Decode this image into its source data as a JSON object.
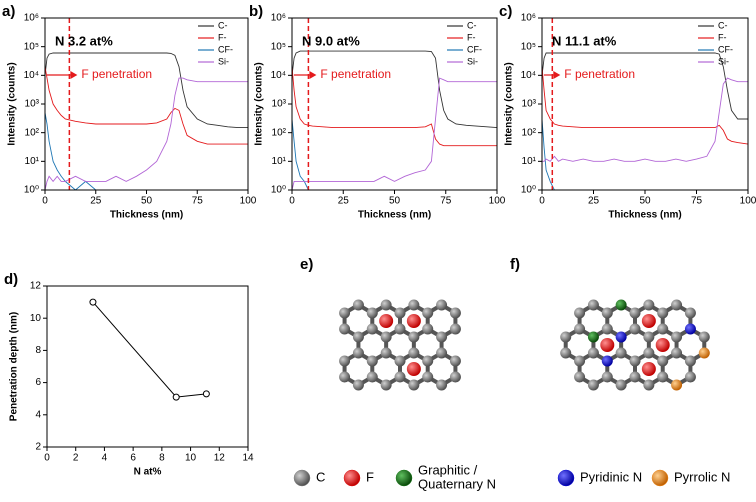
{
  "chart_data": [
    {
      "type": "line",
      "panel": "a)",
      "title": "N 3.2 at%",
      "annotation": "F penetration",
      "vline": 12,
      "vline_color": "#e41a1c",
      "x_label": "Thickness (nm)",
      "y_label": "Intensity (counts)",
      "log_y": true,
      "legend": "upper right",
      "xlim": [
        0,
        100
      ],
      "xticks": [
        0,
        25,
        50,
        75,
        100
      ],
      "ylim": [
        1,
        1000000
      ],
      "yticks": [
        {
          "value": 1,
          "label": "10⁰"
        },
        {
          "value": 10,
          "label": "10¹"
        },
        {
          "value": 100,
          "label": "10²"
        },
        {
          "value": 1000,
          "label": "10³"
        },
        {
          "value": 10000,
          "label": "10⁴"
        },
        {
          "value": 100000,
          "label": "10⁵"
        },
        {
          "value": 1000000,
          "label": "10⁶"
        }
      ],
      "x": [
        0,
        1,
        2,
        4,
        6,
        8,
        10,
        15,
        20,
        25,
        30,
        35,
        40,
        45,
        50,
        55,
        60,
        62,
        64,
        66,
        68,
        70,
        75,
        80,
        85,
        90,
        95,
        100
      ],
      "series": [
        {
          "name": "C-",
          "color": "#333333",
          "values": [
            10000,
            40000,
            55000,
            60000,
            60000,
            60000,
            60000,
            60000,
            60000,
            60000,
            60000,
            60000,
            60000,
            60000,
            60000,
            60000,
            60000,
            58000,
            50000,
            20000,
            3000,
            800,
            300,
            200,
            180,
            160,
            150,
            150
          ]
        },
        {
          "name": "F-",
          "color": "#e41a1c",
          "values": [
            20000,
            8000,
            3000,
            1000,
            600,
            400,
            300,
            250,
            220,
            200,
            200,
            200,
            200,
            200,
            200,
            220,
            300,
            500,
            700,
            600,
            200,
            80,
            50,
            40,
            40,
            40,
            40,
            40
          ]
        },
        {
          "name": "CF-",
          "color": "#1f77b4",
          "values": [
            500,
            200,
            50,
            10,
            5,
            3,
            2,
            1,
            2,
            1,
            1,
            1,
            1,
            1,
            1,
            1,
            1,
            1,
            1,
            1,
            1,
            1,
            1,
            1,
            1,
            1,
            1,
            1
          ]
        },
        {
          "name": "Si-",
          "color": "#b266d6",
          "values": [
            1,
            2,
            3,
            2,
            3,
            2,
            2,
            3,
            2,
            2,
            2,
            3,
            2,
            3,
            5,
            10,
            50,
            200,
            2000,
            8000,
            8000,
            7000,
            6000,
            6000,
            6000,
            6000,
            6000,
            6000
          ]
        }
      ]
    },
    {
      "type": "line",
      "panel": "b)",
      "title": "N 9.0 at%",
      "annotation": "F penetration",
      "vline": 8,
      "vline_color": "#e41a1c",
      "x_label": "Thickness (nm)",
      "y_label": "Intensity (counts)",
      "log_y": true,
      "legend": "upper right",
      "xlim": [
        0,
        100
      ],
      "xticks": [
        0,
        25,
        50,
        75,
        100
      ],
      "ylim": [
        1,
        1000000
      ],
      "yticks": [
        {
          "value": 1,
          "label": "10⁰"
        },
        {
          "value": 10,
          "label": "10¹"
        },
        {
          "value": 100,
          "label": "10²"
        },
        {
          "value": 1000,
          "label": "10³"
        },
        {
          "value": 10000,
          "label": "10⁴"
        },
        {
          "value": 100000,
          "label": "10⁵"
        },
        {
          "value": 1000000,
          "label": "10⁶"
        }
      ],
      "x": [
        0,
        1,
        2,
        4,
        6,
        8,
        10,
        15,
        20,
        25,
        30,
        35,
        40,
        45,
        50,
        55,
        60,
        65,
        68,
        70,
        72,
        74,
        76,
        80,
        85,
        90,
        95,
        100
      ],
      "series": [
        {
          "name": "C-",
          "color": "#333333",
          "values": [
            10000,
            40000,
            60000,
            70000,
            70000,
            70000,
            70000,
            70000,
            70000,
            70000,
            70000,
            70000,
            70000,
            70000,
            70000,
            70000,
            70000,
            70000,
            68000,
            40000,
            3000,
            600,
            300,
            200,
            180,
            170,
            160,
            150
          ]
        },
        {
          "name": "F-",
          "color": "#e41a1c",
          "values": [
            20000,
            3000,
            800,
            300,
            200,
            180,
            170,
            160,
            150,
            150,
            150,
            150,
            150,
            150,
            150,
            150,
            150,
            160,
            200,
            60,
            40,
            35,
            35,
            35,
            35,
            35,
            35,
            35
          ]
        },
        {
          "name": "CF-",
          "color": "#1f77b4",
          "values": [
            300,
            50,
            10,
            3,
            2,
            1,
            1,
            1,
            1,
            1,
            1,
            1,
            1,
            1,
            1,
            1,
            1,
            1,
            1,
            1,
            1,
            1,
            1,
            1,
            1,
            1,
            1,
            1
          ]
        },
        {
          "name": "Si-",
          "color": "#b266d6",
          "values": [
            1,
            2,
            2,
            2,
            2,
            2,
            2,
            2,
            2,
            2,
            2,
            2,
            2,
            3,
            2,
            3,
            4,
            5,
            10,
            300,
            8000,
            7000,
            6000,
            6000,
            6000,
            6000,
            6000,
            6000
          ]
        }
      ]
    },
    {
      "type": "line",
      "panel": "c)",
      "title": "N 11.1 at%",
      "annotation": "F penetration",
      "vline": 5,
      "vline_color": "#e41a1c",
      "x_label": "Thickness (nm)",
      "y_label": "Intensity (counts)",
      "log_y": true,
      "legend": "upper right",
      "xlim": [
        0,
        100
      ],
      "xticks": [
        0,
        25,
        50,
        75,
        100
      ],
      "ylim": [
        1,
        1000000
      ],
      "yticks": [
        {
          "value": 1,
          "label": "10⁰"
        },
        {
          "value": 10,
          "label": "10¹"
        },
        {
          "value": 100,
          "label": "10²"
        },
        {
          "value": 1000,
          "label": "10³"
        },
        {
          "value": 10000,
          "label": "10⁴"
        },
        {
          "value": 100000,
          "label": "10⁵"
        },
        {
          "value": 1000000,
          "label": "10⁶"
        }
      ],
      "x": [
        0,
        1,
        2,
        4,
        6,
        8,
        10,
        15,
        20,
        25,
        30,
        35,
        40,
        45,
        50,
        55,
        60,
        65,
        70,
        75,
        80,
        84,
        86,
        88,
        90,
        92,
        95,
        100
      ],
      "series": [
        {
          "name": "C-",
          "color": "#333333",
          "values": [
            10000,
            40000,
            60000,
            60000,
            60000,
            60000,
            60000,
            60000,
            60000,
            60000,
            60000,
            60000,
            60000,
            60000,
            60000,
            60000,
            60000,
            60000,
            60000,
            60000,
            60000,
            60000,
            55000,
            20000,
            3000,
            600,
            300,
            300
          ]
        },
        {
          "name": "F-",
          "color": "#e41a1c",
          "values": [
            20000,
            3000,
            600,
            300,
            200,
            180,
            170,
            160,
            150,
            150,
            150,
            150,
            150,
            150,
            150,
            150,
            150,
            150,
            150,
            150,
            150,
            150,
            180,
            120,
            60,
            50,
            45,
            40
          ]
        },
        {
          "name": "CF-",
          "color": "#1f77b4",
          "values": [
            300,
            30,
            5,
            2,
            1,
            1,
            1,
            1,
            1,
            1,
            1,
            1,
            1,
            1,
            1,
            1,
            1,
            1,
            1,
            1,
            1,
            1,
            1,
            1,
            1,
            1,
            1,
            1
          ]
        },
        {
          "name": "Si-",
          "color": "#b266d6",
          "values": [
            10,
            10,
            12,
            10,
            15,
            10,
            12,
            10,
            12,
            10,
            10,
            12,
            10,
            10,
            12,
            10,
            10,
            12,
            10,
            12,
            15,
            50,
            500,
            5000,
            8000,
            7000,
            6000,
            6000
          ]
        }
      ]
    },
    {
      "type": "scatter_line",
      "panel": "d)",
      "x_label": "N at%",
      "y_label": "Penetration depth (nm)",
      "xlim": [
        0,
        14
      ],
      "xticks": [
        0,
        2,
        4,
        6,
        8,
        10,
        12,
        14
      ],
      "ylim": [
        2,
        12
      ],
      "yticks": [
        2,
        4,
        6,
        8,
        10,
        12
      ],
      "x": [
        3.2,
        9.0,
        11.1
      ],
      "values": [
        11,
        5.1,
        5.3
      ],
      "color": "#000000"
    }
  ],
  "structures": {
    "panel_e": "e)",
    "panel_f": "f)",
    "legend": [
      {
        "lines": [
          "C"
        ],
        "color": "#808080"
      },
      {
        "lines": [
          "F"
        ],
        "color": "#e01010"
      },
      {
        "lines": [
          "Graphitic /",
          "Quaternary N"
        ],
        "color": "#1a7a1a"
      },
      {
        "lines": [
          "Pyridinic N"
        ],
        "color": "#1010e0"
      },
      {
        "lines": [
          "Pyrrolic N"
        ],
        "color": "#f08c20"
      }
    ]
  }
}
